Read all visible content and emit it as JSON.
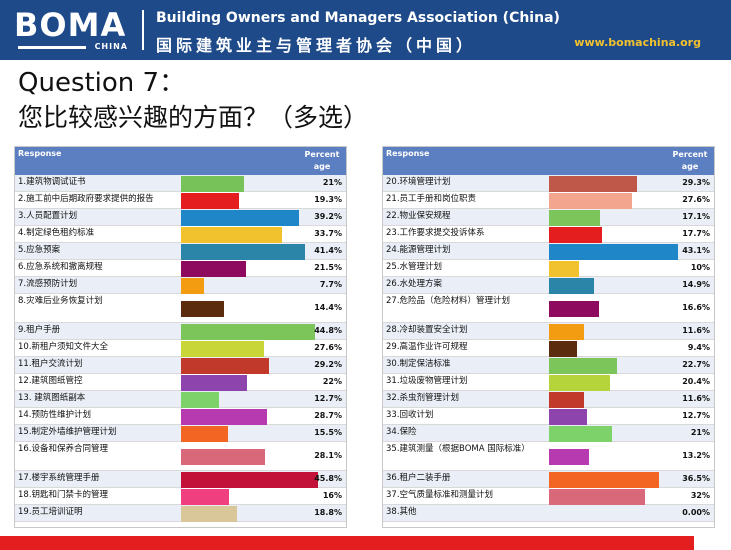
{
  "header": {
    "logo_text": "BOMA",
    "logo_sub": "CHINA",
    "org_en": "Building Owners and Managers Association (China)",
    "org_cn": "国际建筑业主与管理者协会（中国）",
    "url": "www.bomachina.org",
    "bg_color": "#1e4a8a"
  },
  "question": {
    "title": "Question  7：",
    "subtitle": "您比较感兴趣的方面？（多选）"
  },
  "chart_data": {
    "type": "bar",
    "orientation": "horizontal",
    "value_unit": "percent",
    "xlim": [
      0,
      100
    ],
    "header": {
      "response_label": "Response",
      "percent_label": "Percent age"
    },
    "left_table": [
      {
        "label": "1.建筑物调试证书",
        "value": 21,
        "display": "21%",
        "color": "#78c25a"
      },
      {
        "label": "2.施工前中后期政府要求提供的报告",
        "value": 19.3,
        "display": "19.3%",
        "color": "#e41e1e"
      },
      {
        "label": "3.人员配置计划",
        "value": 39.2,
        "display": "39.2%",
        "color": "#1f87c7"
      },
      {
        "label": "4.制定绿色租约标准",
        "value": 33.7,
        "display": "33.7%",
        "color": "#f2c12e"
      },
      {
        "label": "5.应急预案",
        "value": 41.4,
        "display": "41.4%",
        "color": "#2a85a9"
      },
      {
        "label": "6.应急系统和撤离规程",
        "value": 21.5,
        "display": "21.5%",
        "color": "#8e0a5f"
      },
      {
        "label": "7.流感预防计划",
        "value": 7.7,
        "display": "7.7%",
        "color": "#f39c12"
      },
      {
        "label": "8.灾难后业务恢复计划",
        "value": 14.4,
        "display": "14.4%",
        "color": "#5b2c0e"
      },
      {
        "label": "9.租户手册",
        "value": 44.8,
        "display": "44.8%",
        "color": "#7cc55a"
      },
      {
        "label": "10.新租户须知文件大全",
        "value": 27.6,
        "display": "27.6%",
        "color": "#c8d638"
      },
      {
        "label": "11.租户交流计划",
        "value": 29.2,
        "display": "29.2%",
        "color": "#c0392b"
      },
      {
        "label": "12.建筑图纸管控",
        "value": 22,
        "display": "22%",
        "color": "#8e44ad"
      },
      {
        "label": "13. 建筑图纸副本",
        "value": 12.7,
        "display": "12.7%",
        "color": "#7dd36a"
      },
      {
        "label": "14.预防性维护计划",
        "value": 28.7,
        "display": "28.7%",
        "color": "#b83ab0"
      },
      {
        "label": "15.制定外墙维护管理计划",
        "value": 15.5,
        "display": "15.5%",
        "color": "#f26522"
      },
      {
        "label": "16.设备和保养合同管理",
        "value": 28.1,
        "display": "28.1%",
        "color": "#d9697a"
      },
      {
        "label": "17.楼宇系统管理手册",
        "value": 45.8,
        "display": "45.8%",
        "color": "#c2123a"
      },
      {
        "label": "18.钥匙和门禁卡的管理",
        "value": 16,
        "display": "16%",
        "color": "#ef3f7e"
      },
      {
        "label": "19.员工培训证明",
        "value": 18.8,
        "display": "18.8%",
        "color": "#d9c79a"
      }
    ],
    "right_table": [
      {
        "label": "20.环境管理计划",
        "value": 29.3,
        "display": "29.3%",
        "color": "#c0584a"
      },
      {
        "label": "21.员工手册和岗位职责",
        "value": 27.6,
        "display": "27.6%",
        "color": "#f4a58d"
      },
      {
        "label": "22.物业保安规程",
        "value": 17.1,
        "display": "17.1%",
        "color": "#7cc55a"
      },
      {
        "label": "23.工作要求提交投诉体系",
        "value": 17.7,
        "display": "17.7%",
        "color": "#e41e1e"
      },
      {
        "label": "24.能源管理计划",
        "value": 43.1,
        "display": "43.1%",
        "color": "#1f87c7"
      },
      {
        "label": "25.水管理计划",
        "value": 10,
        "display": "10%",
        "color": "#f2c12e"
      },
      {
        "label": "26.水处理方案",
        "value": 14.9,
        "display": "14.9%",
        "color": "#2a85a9"
      },
      {
        "label": "27.危险品（危险材料）管理计划",
        "value": 16.6,
        "display": "16.6%",
        "color": "#8e0a5f"
      },
      {
        "label": "28.冷却装置安全计划",
        "value": 11.6,
        "display": "11.6%",
        "color": "#f39c12"
      },
      {
        "label": "29.高温作业许可规程",
        "value": 9.4,
        "display": "9.4%",
        "color": "#5b2c0e"
      },
      {
        "label": "30.制定保洁标准",
        "value": 22.7,
        "display": "22.7%",
        "color": "#7cc55a"
      },
      {
        "label": "31.垃圾废物管理计划",
        "value": 20.4,
        "display": "20.4%",
        "color": "#b5d33a"
      },
      {
        "label": "32.杀虫剂管理计划",
        "value": 11.6,
        "display": "11.6%",
        "color": "#c0392b"
      },
      {
        "label": "33.回收计划",
        "value": 12.7,
        "display": "12.7%",
        "color": "#8e44ad"
      },
      {
        "label": "34.保险",
        "value": 21,
        "display": "21%",
        "color": "#7dd36a"
      },
      {
        "label": "35.建筑测量（根据BOMA 国际标准）",
        "value": 13.2,
        "display": "13.2%",
        "color": "#b83ab0"
      },
      {
        "label": "36.租户二装手册",
        "value": 36.5,
        "display": "36.5%",
        "color": "#f26522"
      },
      {
        "label": "37.空气质量标准和测量计划",
        "value": 32,
        "display": "32%",
        "color": "#d9697a"
      },
      {
        "label": "38.其他",
        "value": 0,
        "display": "0.00%",
        "color": "#cccccc"
      }
    ]
  }
}
